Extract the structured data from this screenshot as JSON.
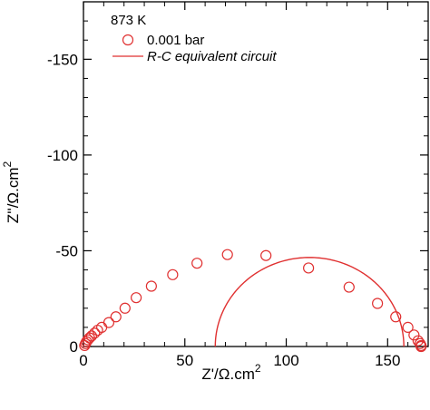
{
  "chart_data": {
    "type": "scatter",
    "title": "873 K",
    "xlabel": "Z'/Ω.cm",
    "xlabel_sup": "2",
    "ylabel": "Z''/Ω.cm",
    "ylabel_sup": "2",
    "xlim": [
      0,
      170
    ],
    "ylim": [
      -180,
      0
    ],
    "x_ticks": [
      0,
      50,
      100,
      150
    ],
    "y_ticks": [
      0,
      -50,
      -100,
      -150
    ],
    "grid": false,
    "legend_position": "top-left",
    "series": [
      {
        "name": "0.001 bar",
        "kind": "markers",
        "marker": "open-circle",
        "color": "#e03030",
        "x": [
          0.6,
          1.0,
          1.5,
          2.2,
          3.0,
          4.0,
          5.5,
          7.0,
          9.0,
          12.5,
          16.0,
          20.5,
          26.0,
          33.5,
          44.0,
          56.0,
          71.0,
          90.0,
          111.0,
          131.0,
          145.0,
          154.0,
          160.0,
          163.0,
          165.0,
          166.0,
          166.5,
          166.5
        ],
        "y": [
          -0.5,
          -1.5,
          -2.5,
          -3.5,
          -4.5,
          -5.5,
          -7.0,
          -8.5,
          -10.0,
          -12.5,
          -15.5,
          -20.0,
          -25.5,
          -31.5,
          -37.5,
          -43.5,
          -48.0,
          -47.5,
          -41.0,
          -31.0,
          -22.5,
          -15.5,
          -10.0,
          -6.0,
          -3.0,
          -1.5,
          -0.5,
          0.0
        ]
      },
      {
        "name": "R-C equivalent circuit",
        "kind": "line",
        "color": "#e03030",
        "center_x": 111.5,
        "radius": 46.5
      }
    ]
  }
}
